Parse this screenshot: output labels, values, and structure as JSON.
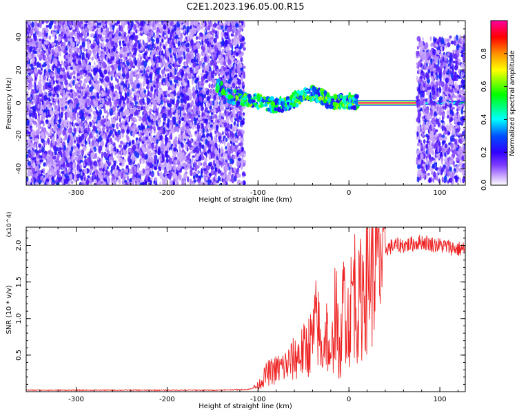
{
  "page": {
    "title": "C2E1.2023.196.05.00.R15"
  },
  "chart_data": [
    {
      "type": "heatmap",
      "title": "C2E1.2023.196.05.00.R15",
      "xlabel": "Height of straight line (km)",
      "ylabel": "Frequency (Hz)",
      "xlim": [
        -355,
        128
      ],
      "ylim": [
        -50,
        50
      ],
      "x_ticks": [
        -300,
        -200,
        -100,
        0,
        100
      ],
      "y_ticks": [
        -40,
        -20,
        0,
        20,
        40
      ],
      "colorbar": {
        "label": "Normalized spectral amplitude",
        "range": [
          0,
          1
        ],
        "ticks": [
          0.0,
          0.2,
          0.4,
          0.6,
          0.8
        ],
        "colors": [
          "#ffffff",
          "#d0b0ff",
          "#8040ff",
          "#5000e0",
          "#0000ff",
          "#00ffff",
          "#00ff00",
          "#ffff00",
          "#ff8000",
          "#ff0000",
          "#ff00a0"
        ]
      },
      "regions": [
        {
          "name": "noise-left",
          "x_range": [
            -355,
            -115
          ],
          "y_range": [
            -50,
            50
          ],
          "amplitude": [
            0.05,
            0.25
          ]
        },
        {
          "name": "echo-trace",
          "x": [
            -145,
            -130,
            -115,
            -100,
            -85,
            -70,
            -55,
            -40,
            -30,
            -20,
            -10,
            0,
            10
          ],
          "y": [
            10,
            4,
            3,
            1,
            -1,
            -1,
            3,
            6,
            4,
            0,
            1,
            1,
            1
          ],
          "amplitude": [
            0.3,
            0.5
          ]
        },
        {
          "name": "carrier-line",
          "x_range": [
            10,
            75
          ],
          "y": 0,
          "amplitude": 1.0
        },
        {
          "name": "noise-right",
          "x_range": [
            75,
            128
          ],
          "y_range": [
            -48,
            40
          ],
          "amplitude": [
            0.05,
            0.25
          ]
        }
      ]
    },
    {
      "type": "line",
      "xlabel": "Height of straight line (km)",
      "ylabel": "SNR (10 * v/v)",
      "y_multiplier": "(x10^4)",
      "xlim": [
        -355,
        128
      ],
      "ylim": [
        0,
        2.25
      ],
      "x_ticks": [
        -300,
        -200,
        -100,
        0,
        100
      ],
      "y_ticks": [
        0.5,
        1.0,
        1.5,
        2.0
      ],
      "line_color": "#ee2222",
      "series": [
        {
          "x": [
            -355,
            -300,
            -250,
            -200,
            -150,
            -110,
            -100,
            -90,
            -80,
            -70,
            -60,
            -50,
            -40,
            -35,
            -30,
            -25,
            -20,
            -15,
            -10,
            -5,
            0,
            5,
            10,
            20,
            30,
            40,
            50,
            60,
            70,
            80,
            90,
            100,
            110,
            120,
            128
          ],
          "values": [
            0.02,
            0.02,
            0.02,
            0.02,
            0.02,
            0.03,
            0.08,
            0.25,
            0.3,
            0.35,
            0.45,
            0.55,
            0.7,
            1.0,
            0.5,
            0.9,
            0.3,
            1.2,
            0.4,
            1.4,
            0.9,
            1.5,
            1.1,
            1.7,
            1.85,
            1.95,
            2.0,
            2.0,
            2.02,
            2.05,
            2.02,
            2.0,
            1.98,
            1.95,
            1.95
          ]
        }
      ]
    }
  ]
}
